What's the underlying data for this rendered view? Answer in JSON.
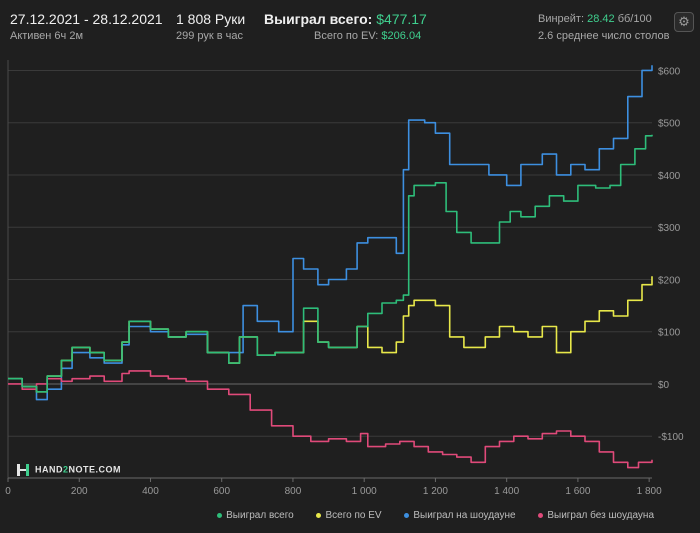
{
  "header": {
    "date_range": "27.12.2021 - 28.12.2021",
    "active": "Активен 6ч 2м",
    "hands": "1 808 Руки",
    "hands_per_hour": "299 рук в час",
    "won_total_label": "Выиграл всего:",
    "won_total_value": "$477.17",
    "ev_label": "Всего по EV:",
    "ev_value": "$206.04",
    "winrate_label": "Винрейт:",
    "winrate_value": "28.42",
    "winrate_unit": "бб/100",
    "tables": "2.6 среднее число столов"
  },
  "logo": {
    "left": "HAND",
    "two": "2",
    "right": "NOTE.COM"
  },
  "colors": {
    "background": "#1f1f1f",
    "grid": "#3a3a3a",
    "won": "#2ebd7a",
    "ev": "#e8e84a",
    "showdown": "#3d8fe0",
    "non_showdown": "#e04a7a"
  },
  "chart_data": {
    "type": "line",
    "xlim": [
      0,
      1808
    ],
    "ylim": [
      -180,
      620
    ],
    "x_ticks": [
      0,
      200,
      400,
      600,
      800,
      1000,
      1200,
      1400,
      1600,
      1800
    ],
    "x_tick_labels": [
      "0",
      "200",
      "400",
      "600",
      "800",
      "1 000",
      "1 200",
      "1 400",
      "1 600",
      "1 800"
    ],
    "y_ticks": [
      -100,
      0,
      100,
      200,
      300,
      400,
      500,
      600
    ],
    "y_tick_labels": [
      "-$100",
      "$0",
      "$100",
      "$200",
      "$300",
      "$400",
      "$500",
      "$600"
    ],
    "grid": true,
    "legend_position": "bottom-right",
    "series": [
      {
        "name": "Выиграл всего",
        "color": "#2ebd7a",
        "points": [
          [
            0,
            10
          ],
          [
            40,
            -5
          ],
          [
            80,
            -15
          ],
          [
            110,
            15
          ],
          [
            150,
            45
          ],
          [
            180,
            70
          ],
          [
            230,
            60
          ],
          [
            270,
            45
          ],
          [
            320,
            80
          ],
          [
            340,
            120
          ],
          [
            400,
            105
          ],
          [
            450,
            90
          ],
          [
            500,
            100
          ],
          [
            560,
            60
          ],
          [
            620,
            40
          ],
          [
            650,
            90
          ],
          [
            700,
            55
          ],
          [
            750,
            60
          ],
          [
            800,
            60
          ],
          [
            830,
            145
          ],
          [
            870,
            80
          ],
          [
            900,
            70
          ],
          [
            950,
            70
          ],
          [
            980,
            110
          ],
          [
            1010,
            135
          ],
          [
            1050,
            155
          ],
          [
            1090,
            160
          ],
          [
            1110,
            170
          ],
          [
            1125,
            360
          ],
          [
            1140,
            380
          ],
          [
            1200,
            385
          ],
          [
            1230,
            330
          ],
          [
            1260,
            290
          ],
          [
            1300,
            270
          ],
          [
            1350,
            270
          ],
          [
            1380,
            310
          ],
          [
            1410,
            330
          ],
          [
            1440,
            320
          ],
          [
            1480,
            340
          ],
          [
            1520,
            360
          ],
          [
            1560,
            350
          ],
          [
            1600,
            380
          ],
          [
            1650,
            375
          ],
          [
            1690,
            380
          ],
          [
            1720,
            420
          ],
          [
            1760,
            450
          ],
          [
            1790,
            475
          ],
          [
            1808,
            477
          ]
        ]
      },
      {
        "name": "Всего по EV",
        "color": "#e8e84a",
        "points": [
          [
            0,
            10
          ],
          [
            40,
            -5
          ],
          [
            80,
            -15
          ],
          [
            110,
            15
          ],
          [
            150,
            45
          ],
          [
            180,
            70
          ],
          [
            230,
            60
          ],
          [
            270,
            45
          ],
          [
            320,
            80
          ],
          [
            340,
            120
          ],
          [
            400,
            105
          ],
          [
            450,
            90
          ],
          [
            500,
            100
          ],
          [
            560,
            60
          ],
          [
            620,
            40
          ],
          [
            650,
            90
          ],
          [
            700,
            55
          ],
          [
            750,
            60
          ],
          [
            800,
            60
          ],
          [
            830,
            120
          ],
          [
            870,
            80
          ],
          [
            900,
            70
          ],
          [
            950,
            70
          ],
          [
            980,
            110
          ],
          [
            1010,
            70
          ],
          [
            1050,
            60
          ],
          [
            1090,
            80
          ],
          [
            1110,
            130
          ],
          [
            1125,
            150
          ],
          [
            1140,
            160
          ],
          [
            1200,
            150
          ],
          [
            1240,
            90
          ],
          [
            1280,
            70
          ],
          [
            1340,
            90
          ],
          [
            1380,
            110
          ],
          [
            1420,
            100
          ],
          [
            1460,
            90
          ],
          [
            1500,
            110
          ],
          [
            1540,
            60
          ],
          [
            1580,
            100
          ],
          [
            1620,
            120
          ],
          [
            1660,
            140
          ],
          [
            1700,
            130
          ],
          [
            1740,
            160
          ],
          [
            1780,
            190
          ],
          [
            1808,
            206
          ]
        ]
      },
      {
        "name": "Выиграл на шоудауне",
        "color": "#3d8fe0",
        "points": [
          [
            0,
            10
          ],
          [
            40,
            -5
          ],
          [
            80,
            -30
          ],
          [
            110,
            -10
          ],
          [
            150,
            30
          ],
          [
            180,
            60
          ],
          [
            230,
            50
          ],
          [
            270,
            40
          ],
          [
            320,
            75
          ],
          [
            340,
            110
          ],
          [
            400,
            100
          ],
          [
            450,
            90
          ],
          [
            500,
            95
          ],
          [
            560,
            60
          ],
          [
            620,
            60
          ],
          [
            660,
            150
          ],
          [
            700,
            120
          ],
          [
            760,
            100
          ],
          [
            800,
            240
          ],
          [
            830,
            220
          ],
          [
            870,
            190
          ],
          [
            900,
            200
          ],
          [
            950,
            220
          ],
          [
            980,
            270
          ],
          [
            1010,
            280
          ],
          [
            1050,
            280
          ],
          [
            1090,
            250
          ],
          [
            1110,
            410
          ],
          [
            1125,
            505
          ],
          [
            1170,
            500
          ],
          [
            1200,
            480
          ],
          [
            1240,
            420
          ],
          [
            1300,
            420
          ],
          [
            1350,
            400
          ],
          [
            1400,
            380
          ],
          [
            1440,
            420
          ],
          [
            1500,
            440
          ],
          [
            1540,
            400
          ],
          [
            1580,
            420
          ],
          [
            1620,
            410
          ],
          [
            1660,
            450
          ],
          [
            1700,
            470
          ],
          [
            1740,
            550
          ],
          [
            1780,
            600
          ],
          [
            1808,
            610
          ]
        ]
      },
      {
        "name": "Выиграл без шоудауна",
        "color": "#e04a7a",
        "points": [
          [
            0,
            0
          ],
          [
            40,
            -10
          ],
          [
            80,
            0
          ],
          [
            110,
            10
          ],
          [
            150,
            5
          ],
          [
            180,
            10
          ],
          [
            230,
            15
          ],
          [
            270,
            5
          ],
          [
            320,
            20
          ],
          [
            340,
            25
          ],
          [
            400,
            15
          ],
          [
            450,
            10
          ],
          [
            500,
            5
          ],
          [
            560,
            -10
          ],
          [
            620,
            -20
          ],
          [
            680,
            -50
          ],
          [
            740,
            -80
          ],
          [
            800,
            -100
          ],
          [
            850,
            -110
          ],
          [
            900,
            -105
          ],
          [
            950,
            -110
          ],
          [
            990,
            -95
          ],
          [
            1010,
            -120
          ],
          [
            1060,
            -115
          ],
          [
            1100,
            -110
          ],
          [
            1140,
            -120
          ],
          [
            1180,
            -130
          ],
          [
            1220,
            -135
          ],
          [
            1260,
            -140
          ],
          [
            1300,
            -150
          ],
          [
            1340,
            -120
          ],
          [
            1380,
            -110
          ],
          [
            1420,
            -100
          ],
          [
            1460,
            -105
          ],
          [
            1500,
            -95
          ],
          [
            1540,
            -90
          ],
          [
            1580,
            -100
          ],
          [
            1620,
            -110
          ],
          [
            1660,
            -130
          ],
          [
            1700,
            -150
          ],
          [
            1740,
            -160
          ],
          [
            1770,
            -150
          ],
          [
            1808,
            -145
          ]
        ]
      }
    ]
  }
}
